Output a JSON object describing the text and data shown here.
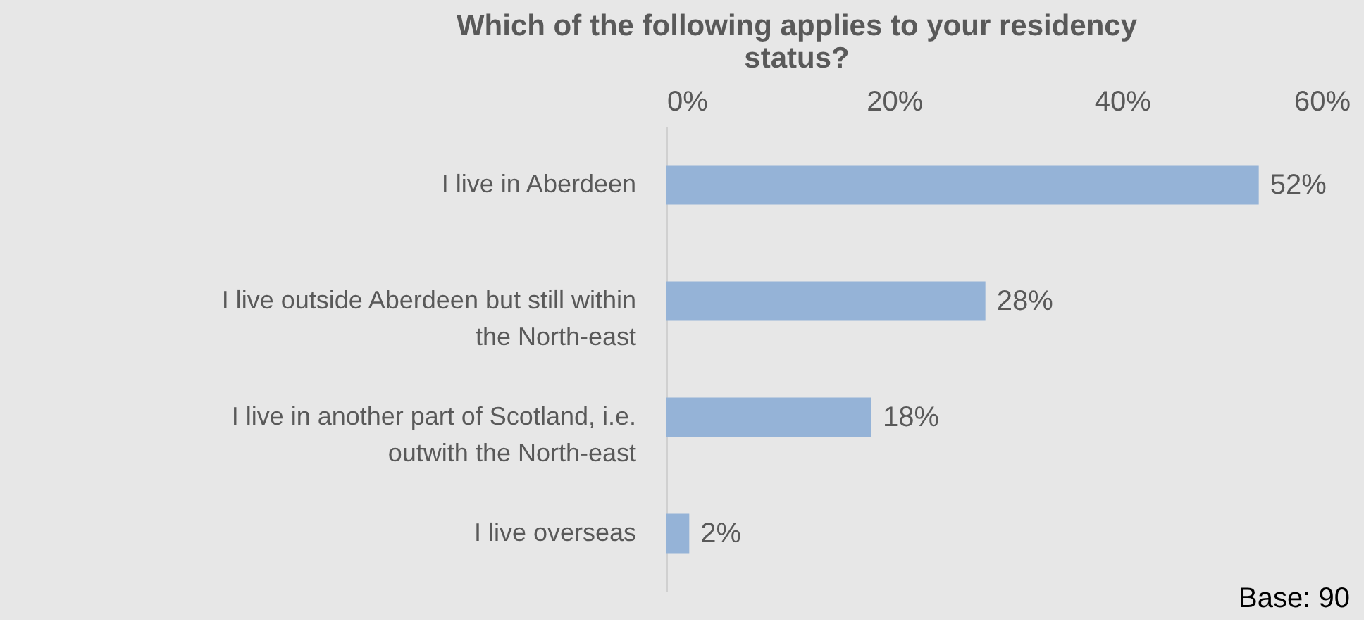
{
  "chart_data": {
    "type": "bar",
    "orientation": "horizontal",
    "title": "Which of the following applies to your residency status?",
    "categories": [
      "I live in Aberdeen",
      "I live outside Aberdeen but still within the North-east",
      "I live in another part of Scotland, i.e. outwith the North-east",
      "I live overseas"
    ],
    "values": [
      52,
      28,
      18,
      2
    ],
    "color": "#95b3d7",
    "value_labels": [
      "52%",
      "28%",
      "18%",
      "2%"
    ],
    "xlim": [
      0,
      60
    ],
    "xticks": [
      {
        "value": 0,
        "label": "0%"
      },
      {
        "value": 20,
        "label": "20%"
      },
      {
        "value": 40,
        "label": "40%"
      },
      {
        "value": 60,
        "label": "60%"
      }
    ],
    "grid": false,
    "annotations": [
      "Base: 90"
    ]
  }
}
